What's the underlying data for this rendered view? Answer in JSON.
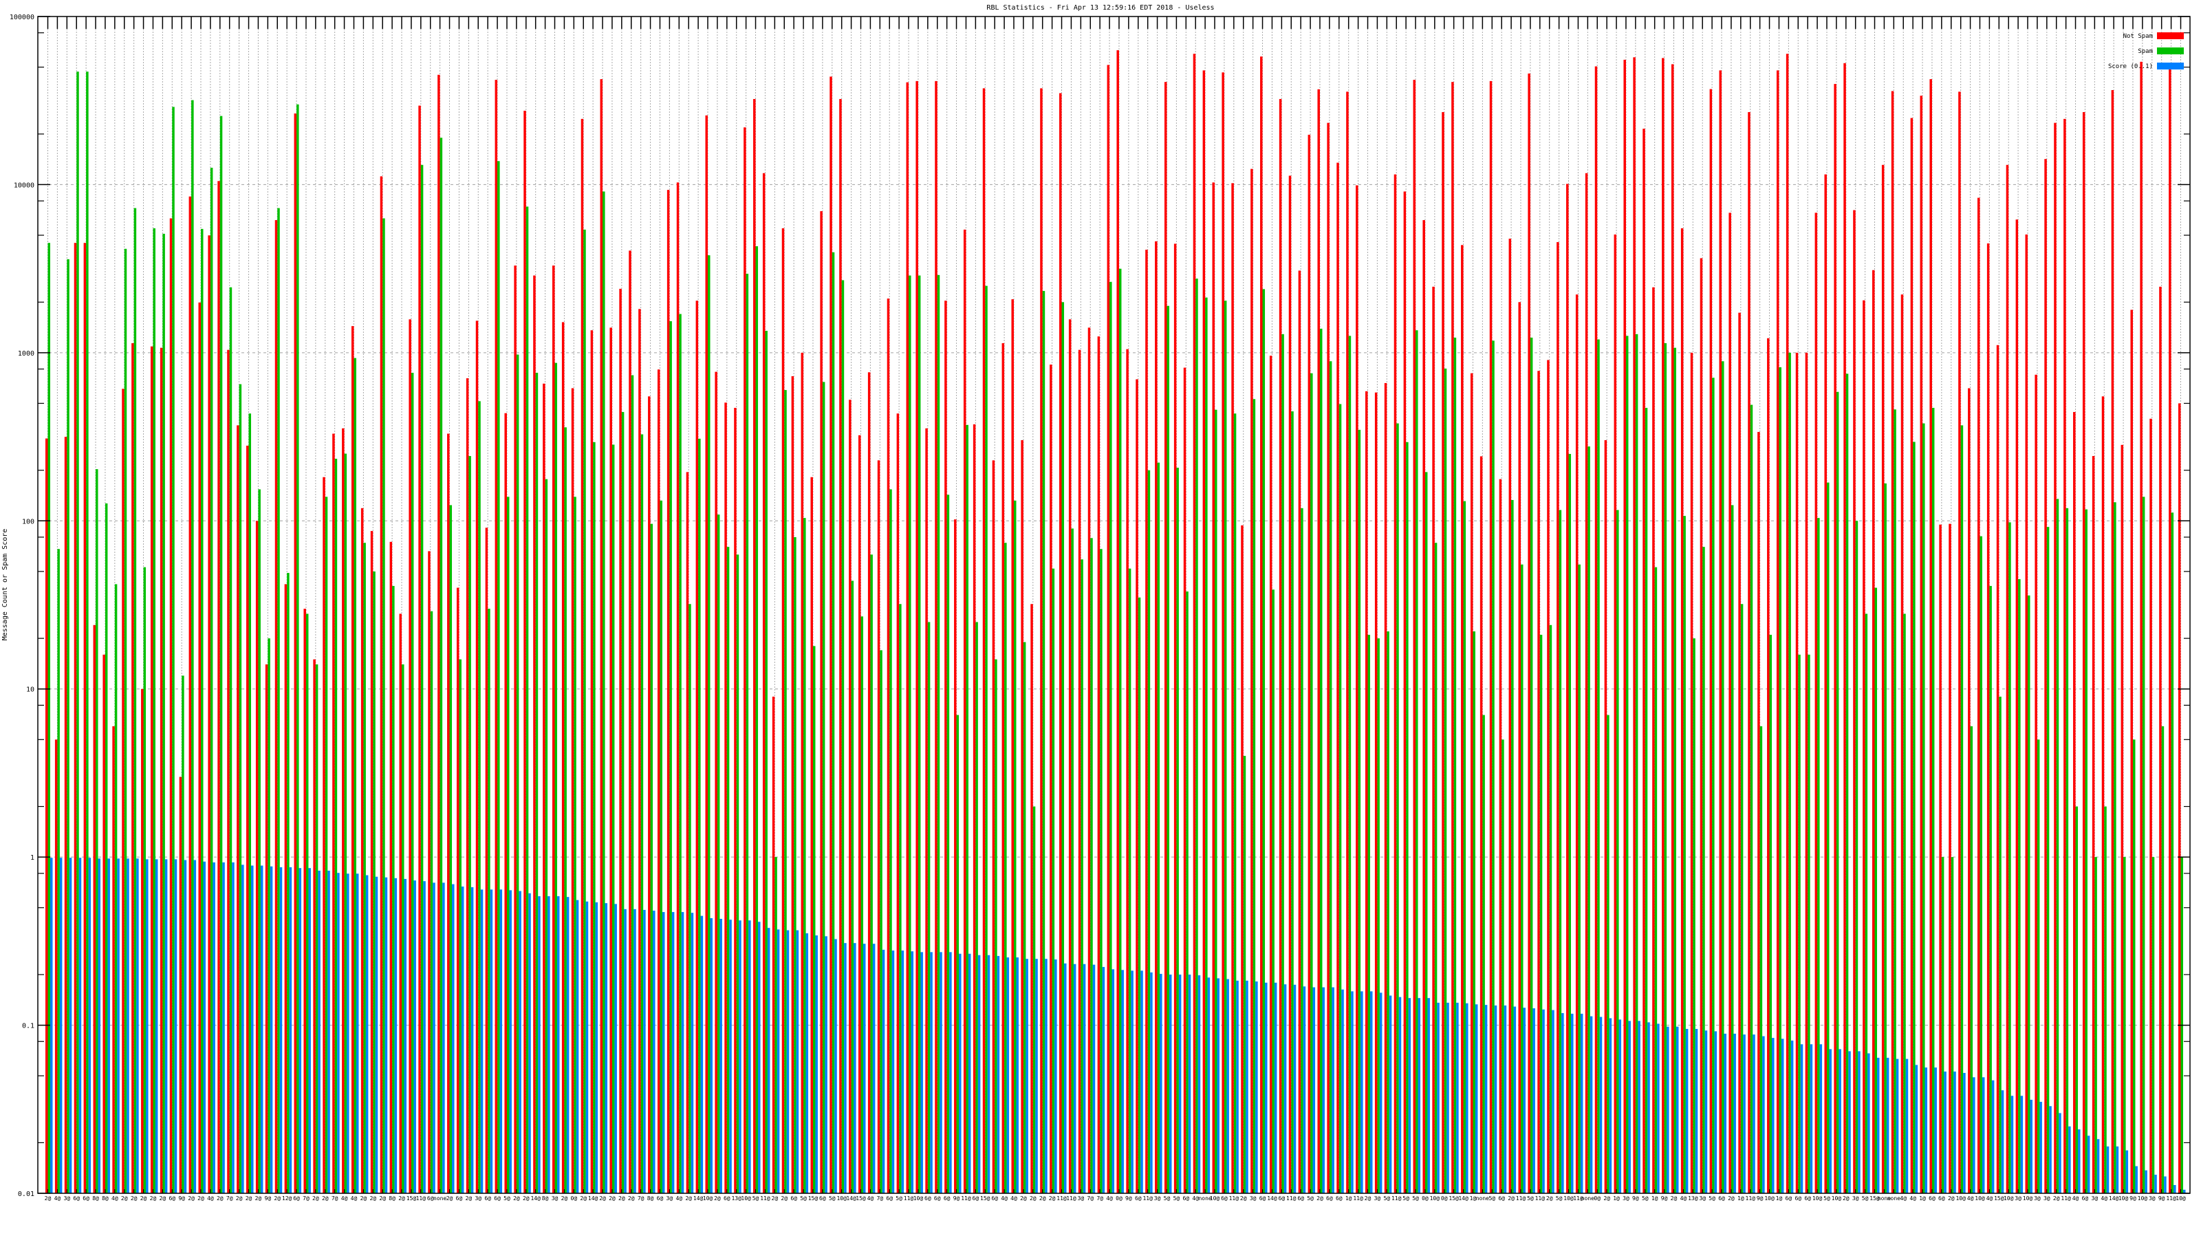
{
  "chart_data": {
    "type": "bar",
    "title": "RBL Statistics - Fri Apr 13 12:59:16 EDT 2018 - Useless",
    "xlabel": "",
    "ylabel": "Message Count or Spam Score",
    "yscale": "log",
    "ylim": [
      0.01,
      100000
    ],
    "yticks": [
      "100000",
      "10000",
      "1000",
      "100",
      "10",
      "1",
      "0.1",
      "0.01"
    ],
    "grid": true,
    "legend_position": "top-right",
    "categories": [
      "2@",
      "4@",
      "3@",
      "6@",
      "6@",
      "8@",
      "8@",
      "4@",
      "2@",
      "2@",
      "2@",
      "2@",
      "2@",
      "6@",
      "9@",
      "2@",
      "2@",
      "4@",
      "2@",
      "7@",
      "2@",
      "2@",
      "2@",
      "9@",
      "2@",
      "12@",
      "6@",
      "7@",
      "2@",
      "2@",
      "7@",
      "4@",
      "4@",
      "2@",
      "2@",
      "2@",
      "8@",
      "2@",
      "15@",
      "11@",
      "6@",
      "none",
      "2@",
      "6@",
      "2@",
      "3@",
      "6@",
      "6@",
      "5@",
      "2@",
      "2@",
      "14@",
      "8@",
      "3@",
      "2@",
      "0@",
      "2@",
      "14@",
      "2@",
      "2@",
      "2@",
      "2@",
      "7@",
      "8@",
      "6@",
      "3@",
      "4@",
      "2@",
      "14@",
      "10@",
      "2@",
      "6@",
      "13@",
      "10@",
      "5@",
      "11@",
      "2@",
      "2@",
      "6@",
      "5@",
      "15@",
      "6@",
      "5@",
      "10@",
      "14@",
      "15@",
      "4@",
      "7@",
      "6@",
      "5@",
      "11@",
      "10@",
      "6@",
      "6@",
      "6@",
      "9@",
      "11@",
      "6@",
      "15@",
      "6@",
      "4@",
      "4@",
      "2@",
      "2@",
      "2@",
      "2@",
      "11@",
      "11@",
      "3@",
      "7@",
      "7@",
      "4@",
      "0@",
      "9@",
      "6@",
      "11@",
      "3@",
      "5@",
      "5@",
      "6@",
      "4@",
      "none",
      "10@",
      "6@",
      "11@",
      "2@",
      "3@",
      "6@",
      "14@",
      "6@",
      "11@",
      "6@",
      "5@",
      "2@",
      "6@",
      "6@",
      "1@",
      "11@",
      "2@",
      "3@",
      "5@",
      "11@",
      "5@",
      "5@",
      "0@",
      "10@",
      "0@",
      "15@",
      "14@",
      "1@",
      "none",
      "5@",
      "6@",
      "2@",
      "11@",
      "5@",
      "11@",
      "2@",
      "5@",
      "10@",
      "11@",
      "none",
      "0@",
      "2@",
      "1@",
      "3@",
      "9@",
      "5@",
      "1@",
      "9@",
      "2@",
      "4@",
      "13@",
      "3@",
      "5@",
      "6@",
      "2@",
      "1@",
      "11@",
      "9@",
      "10@",
      "1@",
      "6@",
      "6@",
      "6@",
      "10@",
      "5@",
      "10@",
      "2@",
      "3@",
      "5@",
      "15@",
      "none",
      "none",
      "4@",
      "4@",
      "1@",
      "6@",
      "6@",
      "2@",
      "10@",
      "4@",
      "10@",
      "4@",
      "15@",
      "10@",
      "3@",
      "10@",
      "3@",
      "3@",
      "2@",
      "11@",
      "4@",
      "6@",
      "3@",
      "4@",
      "14@",
      "10@",
      "9@",
      "10@",
      "3@",
      "9@",
      "11@",
      "10@"
    ],
    "series": [
      {
        "name": "Not Spam",
        "color": "#ff0000",
        "values": [
          309,
          5,
          316,
          4500,
          4500,
          24,
          16,
          6,
          610,
          1140,
          10,
          1090,
          1070,
          6300,
          3,
          8500,
          1990,
          4990,
          10500,
          1040,
          370,
          280,
          100,
          14,
          6150,
          42,
          26500,
          30,
          15,
          182,
          330,
          355,
          1440,
          119,
          87,
          11200,
          75,
          28,
          1580,
          29500,
          66,
          45000,
          330,
          40,
          705,
          1550,
          91,
          42000,
          437,
          3300,
          27500,
          2880,
          655,
          3300,
          1520,
          615,
          24600,
          1360,
          42400,
          1410,
          2400,
          4050,
          1820,
          550,
          795,
          9300,
          10300,
          195,
          2040,
          25800,
          770,
          505,
          470,
          21900,
          32300,
          11700,
          9,
          5500,
          725,
          1000,
          182,
          6950,
          43900,
          32300,
          525,
          323,
          765,
          229,
          2100,
          435,
          40600,
          41300,
          355,
          41300,
          2040,
          102,
          5400,
          375,
          37400,
          229,
          1140,
          2080,
          302,
          32,
          37400,
          850,
          35000,
          1580,
          1040,
          1410,
          1250,
          51500,
          63000,
          1050,
          695,
          4100,
          4600,
          40800,
          4450,
          815,
          60000,
          47800,
          10300,
          46500,
          10200,
          94,
          12400,
          57800,
          960,
          32300,
          11300,
          3080,
          19800,
          36900,
          23300,
          13500,
          35700,
          9900,
          590,
          580,
          660,
          11500,
          9100,
          42000,
          6150,
          2470,
          27000,
          40800,
          4370,
          755,
          242,
          41300,
          177,
          4770,
          2000,
          45800,
          780,
          905,
          4550,
          10100,
          2220,
          11700,
          50500,
          302,
          5050,
          55300,
          57200,
          21500,
          2450,
          56600,
          52000,
          5500,
          1000,
          3650,
          37000,
          47800,
          6800,
          1730,
          27000,
          338,
          1220,
          47800,
          60000,
          1000,
          1000,
          6800,
          11500,
          39700,
          52800,
          7050,
          2050,
          3100,
          13100,
          36000,
          2220,
          24900,
          33800,
          42400,
          95,
          96,
          35700,
          615,
          8350,
          4470,
          1110,
          13100,
          6200,
          5050,
          740,
          14200,
          23300,
          24600,
          444,
          27000,
          243,
          550,
          36500,
          283,
          1800,
          53800,
          405,
          2470,
          50000,
          500
        ]
      },
      {
        "name": "Spam",
        "color": "#00c000",
        "values": [
          4500,
          68,
          3600,
          47000,
          47000,
          203,
          127,
          42,
          4150,
          7250,
          53,
          5500,
          5100,
          29000,
          12,
          31800,
          5450,
          12600,
          25600,
          2450,
          650,
          435,
          154,
          20,
          7250,
          49,
          30000,
          28,
          14,
          139,
          234,
          251,
          930,
          74,
          50,
          6300,
          41,
          14,
          760,
          13100,
          29,
          19000,
          124,
          15,
          243,
          515,
          30,
          13800,
          139,
          975,
          7400,
          760,
          177,
          870,
          360,
          139,
          5400,
          294,
          9100,
          284,
          444,
          735,
          327,
          96,
          132,
          1540,
          1700,
          32,
          308,
          3800,
          109,
          70,
          63,
          2950,
          4300,
          1350,
          1,
          600,
          80,
          104,
          18,
          670,
          3960,
          2700,
          44,
          27,
          63,
          17,
          154,
          32,
          2880,
          2880,
          25,
          2900,
          143,
          7,
          372,
          25,
          2500,
          15,
          74,
          132,
          19,
          2,
          2330,
          52,
          2000,
          90,
          59,
          79,
          68,
          2640,
          3160,
          52,
          35,
          200,
          222,
          1900,
          207,
          38,
          2760,
          2130,
          458,
          2040,
          435,
          4,
          530,
          2390,
          39,
          1290,
          448,
          119,
          755,
          1390,
          890,
          495,
          1260,
          348,
          21,
          20,
          22,
          380,
          294,
          1360,
          195,
          74,
          805,
          1230,
          131,
          22,
          7,
          1180,
          5,
          133,
          55,
          1230,
          21,
          24,
          116,
          250,
          55,
          277,
          1200,
          7,
          116,
          1260,
          1290,
          470,
          53,
          1140,
          1070,
          107,
          20,
          70,
          710,
          890,
          124,
          32,
          490,
          6,
          21,
          820,
          1000,
          16,
          16,
          104,
          169,
          585,
          750,
          100,
          28,
          40,
          167,
          460,
          28,
          295,
          380,
          470,
          1,
          1,
          370,
          6,
          81,
          41,
          9,
          98,
          45,
          36,
          5,
          92,
          135,
          119,
          2,
          117,
          1,
          2,
          129,
          1,
          5,
          139,
          1,
          6,
          112,
          1
        ]
      },
      {
        "name": "Score (0..1)",
        "color": "#0080ff",
        "values": [
          0.99,
          0.99,
          0.99,
          0.99,
          0.99,
          0.98,
          0.98,
          0.98,
          0.98,
          0.98,
          0.97,
          0.97,
          0.97,
          0.97,
          0.96,
          0.96,
          0.94,
          0.93,
          0.93,
          0.93,
          0.9,
          0.89,
          0.89,
          0.88,
          0.87,
          0.87,
          0.86,
          0.86,
          0.83,
          0.83,
          0.805,
          0.797,
          0.797,
          0.78,
          0.764,
          0.757,
          0.749,
          0.741,
          0.726,
          0.719,
          0.704,
          0.704,
          0.69,
          0.668,
          0.662,
          0.641,
          0.641,
          0.641,
          0.635,
          0.628,
          0.609,
          0.585,
          0.585,
          0.585,
          0.579,
          0.555,
          0.544,
          0.538,
          0.532,
          0.526,
          0.49,
          0.49,
          0.485,
          0.48,
          0.471,
          0.471,
          0.471,
          0.466,
          0.447,
          0.433,
          0.429,
          0.424,
          0.42,
          0.42,
          0.412,
          0.379,
          0.371,
          0.367,
          0.367,
          0.352,
          0.342,
          0.338,
          0.325,
          0.308,
          0.308,
          0.305,
          0.305,
          0.281,
          0.278,
          0.278,
          0.275,
          0.272,
          0.272,
          0.272,
          0.272,
          0.266,
          0.266,
          0.261,
          0.261,
          0.258,
          0.253,
          0.253,
          0.248,
          0.248,
          0.248,
          0.246,
          0.233,
          0.231,
          0.231,
          0.229,
          0.222,
          0.215,
          0.213,
          0.211,
          0.211,
          0.206,
          0.202,
          0.2,
          0.2,
          0.2,
          0.198,
          0.192,
          0.19,
          0.188,
          0.184,
          0.184,
          0.182,
          0.179,
          0.179,
          0.175,
          0.174,
          0.17,
          0.168,
          0.168,
          0.168,
          0.163,
          0.159,
          0.159,
          0.159,
          0.156,
          0.15,
          0.147,
          0.145,
          0.145,
          0.145,
          0.136,
          0.136,
          0.136,
          0.135,
          0.133,
          0.132,
          0.131,
          0.131,
          0.129,
          0.127,
          0.126,
          0.124,
          0.123,
          0.118,
          0.117,
          0.117,
          0.113,
          0.112,
          0.11,
          0.108,
          0.106,
          0.106,
          0.104,
          0.102,
          0.098,
          0.098,
          0.095,
          0.095,
          0.093,
          0.092,
          0.089,
          0.089,
          0.088,
          0.088,
          0.086,
          0.084,
          0.083,
          0.081,
          0.077,
          0.077,
          0.077,
          0.072,
          0.072,
          0.07,
          0.07,
          0.068,
          0.064,
          0.064,
          0.063,
          0.063,
          0.058,
          0.056,
          0.056,
          0.053,
          0.053,
          0.052,
          0.049,
          0.049,
          0.047,
          0.041,
          0.038,
          0.038,
          0.036,
          0.035,
          0.033,
          0.03,
          0.025,
          0.024,
          0.022,
          0.021,
          0.019,
          0.019,
          0.018,
          0.0145,
          0.0137,
          0.0129,
          0.0126,
          0.0112,
          0.0105
        ]
      }
    ]
  }
}
